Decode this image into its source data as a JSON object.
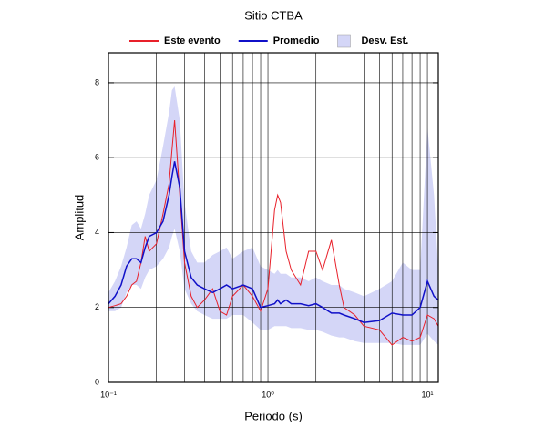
{
  "chart_data": {
    "type": "band-line",
    "title": "Sitio CTBA",
    "xlabel": "Periodo (s)",
    "ylabel": "Amplitud",
    "log_x": true,
    "grid": true,
    "legend": "top",
    "xlim": [
      0.1,
      11.7
    ],
    "ylim": [
      0,
      8.8
    ],
    "xticks": [
      {
        "value": 0.1,
        "label": "10⁻¹"
      },
      {
        "value": 1,
        "label": "10⁰"
      },
      {
        "value": 10,
        "label": "10¹"
      }
    ],
    "xminor": [
      0.2,
      0.3,
      0.4,
      0.5,
      0.6,
      0.7,
      0.8,
      0.9,
      2,
      3,
      4,
      5,
      6,
      7,
      8,
      9
    ],
    "yticks": [
      0,
      2,
      4,
      6,
      8
    ],
    "x": [
      0.1,
      0.11,
      0.12,
      0.13,
      0.14,
      0.15,
      0.16,
      0.17,
      0.18,
      0.2,
      0.22,
      0.24,
      0.25,
      0.26,
      0.28,
      0.3,
      0.33,
      0.36,
      0.4,
      0.45,
      0.5,
      0.55,
      0.6,
      0.7,
      0.8,
      0.9,
      1.0,
      1.1,
      1.15,
      1.2,
      1.3,
      1.4,
      1.6,
      1.8,
      2.0,
      2.2,
      2.5,
      2.8,
      3.0,
      3.5,
      4,
      5,
      6,
      7,
      8,
      9,
      10,
      11,
      11.7
    ],
    "band": {
      "name": "Desv. Est.",
      "color": "#d4d6f7",
      "lower": [
        1.9,
        1.9,
        2.0,
        2.4,
        2.6,
        2.6,
        2.5,
        2.8,
        3.0,
        3.1,
        3.3,
        3.6,
        3.9,
        4.1,
        3.5,
        2.5,
        2.1,
        1.9,
        1.8,
        1.7,
        1.7,
        1.7,
        1.8,
        1.8,
        1.6,
        1.4,
        1.4,
        1.5,
        1.5,
        1.5,
        1.5,
        1.45,
        1.45,
        1.4,
        1.4,
        1.35,
        1.25,
        1.2,
        1.2,
        1.1,
        1.05,
        1.05,
        1.05,
        1.0,
        1.0,
        1.0,
        1.3,
        1.1,
        1.0
      ],
      "upper": [
        2.4,
        2.7,
        3.1,
        3.6,
        4.2,
        4.3,
        4.1,
        4.5,
        5.0,
        5.4,
        6.3,
        7.2,
        7.8,
        7.9,
        7.0,
        4.8,
        3.5,
        3.2,
        3.2,
        3.4,
        3.5,
        3.6,
        3.3,
        3.5,
        3.6,
        3.1,
        3.0,
        2.9,
        3.0,
        2.9,
        2.9,
        2.8,
        2.8,
        2.7,
        2.8,
        2.7,
        2.6,
        2.6,
        2.5,
        2.4,
        2.3,
        2.5,
        2.7,
        3.2,
        3.0,
        3.0,
        6.8,
        5.0,
        3.0
      ]
    },
    "series": [
      {
        "name": "Este evento",
        "color": "#e8202a",
        "values": [
          2.0,
          2.05,
          2.1,
          2.3,
          2.6,
          2.7,
          3.2,
          3.9,
          3.5,
          3.7,
          4.5,
          5.3,
          6.2,
          7.0,
          5.0,
          3.2,
          2.3,
          2.0,
          2.2,
          2.5,
          1.9,
          1.8,
          2.3,
          2.6,
          2.3,
          1.9,
          2.5,
          4.6,
          5.0,
          4.8,
          3.5,
          3.0,
          2.6,
          3.5,
          3.5,
          3.0,
          3.8,
          2.6,
          2.0,
          1.8,
          1.5,
          1.4,
          1.0,
          1.2,
          1.1,
          1.2,
          1.8,
          1.7,
          1.5
        ]
      },
      {
        "name": "Promedio",
        "color": "#1010c8",
        "values": [
          2.1,
          2.3,
          2.6,
          3.1,
          3.3,
          3.3,
          3.2,
          3.6,
          3.9,
          4.0,
          4.3,
          5.0,
          5.5,
          5.9,
          5.2,
          3.5,
          2.8,
          2.6,
          2.5,
          2.4,
          2.5,
          2.6,
          2.5,
          2.6,
          2.5,
          2.0,
          2.05,
          2.1,
          2.2,
          2.1,
          2.2,
          2.1,
          2.1,
          2.05,
          2.1,
          2.0,
          1.85,
          1.85,
          1.8,
          1.7,
          1.6,
          1.65,
          1.85,
          1.8,
          1.8,
          2.0,
          2.7,
          2.3,
          2.2
        ]
      }
    ]
  }
}
